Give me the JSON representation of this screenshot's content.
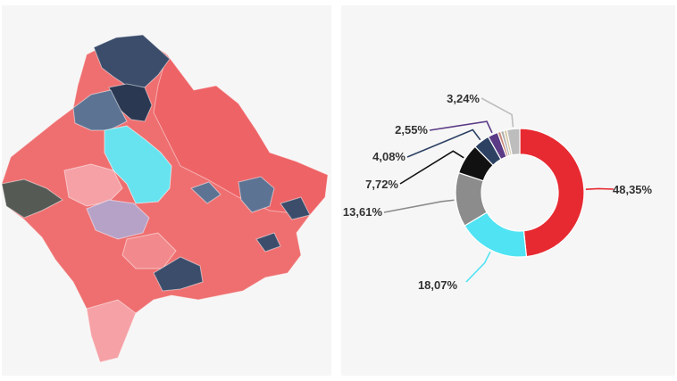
{
  "colors": {
    "panel_bg": "#f6f6f6",
    "red": "#e72a31",
    "cyan": "#4fe3f3",
    "grey": "#8c8c8c",
    "black": "#111111",
    "navy": "#2d4263",
    "purple": "#5b3a86",
    "map_red": "#ef6f70",
    "map_light_red": "#f5a1a6",
    "map_navy": "#3b4d6b",
    "map_slate": "#5d7393",
    "map_cyan": "#66e3ef",
    "map_lavender": "#b7a2c7",
    "map_olive": "#555a55"
  },
  "map": {
    "regions": [
      {
        "name": "map-region-north-navy",
        "fill": "map_navy"
      },
      {
        "name": "map-region-northeast",
        "fill": "map_red"
      },
      {
        "name": "map-region-west",
        "fill": "map_red"
      },
      {
        "name": "map-region-central-cyan",
        "fill": "map_cyan"
      },
      {
        "name": "map-region-center-lightred",
        "fill": "map_light_red"
      },
      {
        "name": "map-region-southwest-lavender",
        "fill": "map_lavender"
      },
      {
        "name": "map-region-west-olive",
        "fill": "map_olive"
      },
      {
        "name": "map-region-south",
        "fill": "map_red"
      },
      {
        "name": "map-region-south-tail",
        "fill": "map_light_red"
      },
      {
        "name": "map-region-southeast-navy",
        "fill": "map_navy"
      },
      {
        "name": "map-region-east-slate",
        "fill": "map_slate"
      }
    ]
  },
  "chart_data": {
    "type": "pie",
    "donut": true,
    "title": "",
    "slices": [
      {
        "label": "48,35%",
        "value": 48.35,
        "color": "#e72a31"
      },
      {
        "label": "18,07%",
        "value": 18.07,
        "color": "#4fe3f3"
      },
      {
        "label": "13,61%",
        "value": 13.61,
        "color": "#8c8c8c"
      },
      {
        "label": "7,72%",
        "value": 7.72,
        "color": "#111111"
      },
      {
        "label": "4,08%",
        "value": 4.08,
        "color": "#2d4263"
      },
      {
        "label": "2,55%",
        "value": 2.55,
        "color": "#5b3a86"
      },
      {
        "label": "",
        "value": 0.8,
        "color": "#c98a7a"
      },
      {
        "label": "",
        "value": 0.8,
        "color": "#b0b0b0"
      },
      {
        "label": "",
        "value": 0.78,
        "color": "#d8c8a8"
      },
      {
        "label": "3,24%",
        "value": 3.24,
        "color": "#bdbdbd"
      }
    ]
  }
}
